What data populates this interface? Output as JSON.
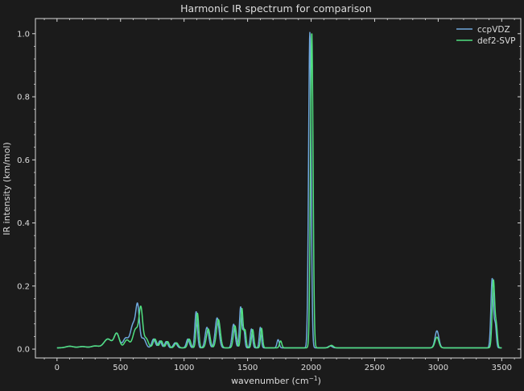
{
  "chart_data": {
    "type": "line",
    "title": "Harmonic IR spectrum for comparison",
    "xlabel": "wavenumber (cm",
    "xlabel_superscript": "−1",
    "xlabel_suffix": ")",
    "ylabel": "IR intensity (km/mol)",
    "xlim": [
      -170,
      3650
    ],
    "ylim": [
      -0.028,
      1.048
    ],
    "xticks": [
      0,
      500,
      1000,
      1500,
      2000,
      2500,
      3000,
      3500
    ],
    "yticks": [
      0.0,
      0.2,
      0.4,
      0.6,
      0.8,
      1.0
    ],
    "xtick_labels": [
      "0",
      "500",
      "1000",
      "1500",
      "2000",
      "2500",
      "3000",
      "3500"
    ],
    "ytick_labels": [
      "0.0",
      "0.2",
      "0.4",
      "0.6",
      "0.8",
      "1.0"
    ],
    "grid": false,
    "legend_position": "top-right",
    "series": [
      {
        "name": "ccpVDZ",
        "color": "#6fa8dc",
        "baseline": 0.004,
        "peaks": [
          [
            100,
            0.005,
            30
          ],
          [
            200,
            0.004,
            30
          ],
          [
            300,
            0.006,
            30
          ],
          [
            400,
            0.028,
            30
          ],
          [
            470,
            0.045,
            20
          ],
          [
            540,
            0.03,
            20
          ],
          [
            600,
            0.075,
            22
          ],
          [
            635,
            0.118,
            14
          ],
          [
            680,
            0.03,
            18
          ],
          [
            760,
            0.028,
            14
          ],
          [
            810,
            0.022,
            12
          ],
          [
            860,
            0.02,
            12
          ],
          [
            930,
            0.016,
            14
          ],
          [
            1030,
            0.028,
            12
          ],
          [
            1095,
            0.115,
            10
          ],
          [
            1180,
            0.065,
            14
          ],
          [
            1260,
            0.095,
            15
          ],
          [
            1390,
            0.075,
            12
          ],
          [
            1445,
            0.13,
            9
          ],
          [
            1470,
            0.06,
            8
          ],
          [
            1530,
            0.06,
            9
          ],
          [
            1600,
            0.065,
            8
          ],
          [
            1740,
            0.026,
            9
          ],
          [
            1990,
            1.0,
            10
          ],
          [
            2150,
            0.006,
            15
          ],
          [
            2990,
            0.054,
            15
          ],
          [
            3425,
            0.22,
            10
          ],
          [
            3450,
            0.07,
            8
          ]
        ]
      },
      {
        "name": "def2-SVP",
        "color": "#50e080",
        "baseline": 0.004,
        "peaks": [
          [
            100,
            0.005,
            30
          ],
          [
            200,
            0.004,
            30
          ],
          [
            300,
            0.006,
            30
          ],
          [
            400,
            0.028,
            30
          ],
          [
            470,
            0.045,
            20
          ],
          [
            550,
            0.025,
            20
          ],
          [
            620,
            0.06,
            22
          ],
          [
            660,
            0.118,
            14
          ],
          [
            700,
            0.03,
            18
          ],
          [
            770,
            0.028,
            14
          ],
          [
            820,
            0.022,
            12
          ],
          [
            870,
            0.02,
            12
          ],
          [
            940,
            0.016,
            14
          ],
          [
            1040,
            0.028,
            12
          ],
          [
            1105,
            0.11,
            10
          ],
          [
            1190,
            0.06,
            14
          ],
          [
            1270,
            0.09,
            15
          ],
          [
            1400,
            0.07,
            12
          ],
          [
            1455,
            0.125,
            9
          ],
          [
            1480,
            0.055,
            8
          ],
          [
            1540,
            0.058,
            9
          ],
          [
            1610,
            0.062,
            8
          ],
          [
            1760,
            0.022,
            9
          ],
          [
            2005,
            1.0,
            10
          ],
          [
            2160,
            0.008,
            15
          ],
          [
            2990,
            0.034,
            15
          ],
          [
            3435,
            0.215,
            10
          ],
          [
            3458,
            0.065,
            8
          ]
        ]
      }
    ]
  }
}
